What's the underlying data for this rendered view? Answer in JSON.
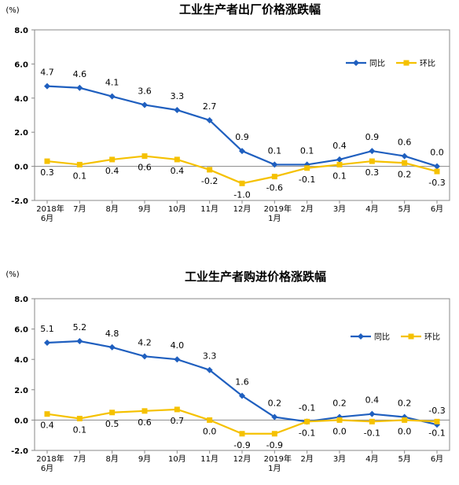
{
  "chart_data": [
    {
      "type": "line",
      "title": "工业生产者出厂价格涨跌幅",
      "unit": "(%)",
      "ylim": [
        -2.0,
        8.0
      ],
      "yticks": [
        "8.0",
        "6.0",
        "4.0",
        "2.0",
        "0.0",
        "-2.0"
      ],
      "ytick_values": [
        8,
        6,
        4,
        2,
        0,
        -2
      ],
      "categories": [
        [
          "2018年",
          "6月"
        ],
        [
          "7月"
        ],
        [
          "8月"
        ],
        [
          "9月"
        ],
        [
          "10月"
        ],
        [
          "11月"
        ],
        [
          "12月"
        ],
        [
          "2019年",
          "1月"
        ],
        [
          "2月"
        ],
        [
          "3月"
        ],
        [
          "4月"
        ],
        [
          "5月"
        ],
        [
          "6月"
        ]
      ],
      "legend_position": "top-right",
      "series": [
        {
          "name": "同比",
          "color": "#1f5fbf",
          "marker": "diamond",
          "values": [
            4.7,
            4.6,
            4.1,
            3.6,
            3.3,
            2.7,
            0.9,
            0.1,
            0.1,
            0.4,
            0.9,
            0.6,
            0.0
          ],
          "labels": [
            "4.7",
            "4.6",
            "4.1",
            "3.6",
            "3.3",
            "2.7",
            "0.9",
            "0.1",
            "0.1",
            "0.4",
            "0.9",
            "0.6",
            "0.0"
          ]
        },
        {
          "name": "环比",
          "color": "#f5c100",
          "marker": "square",
          "values": [
            0.3,
            0.1,
            0.4,
            0.6,
            0.4,
            -0.2,
            -1.0,
            -0.6,
            -0.1,
            0.1,
            0.3,
            0.2,
            -0.3
          ],
          "labels": [
            "0.3",
            "0.1",
            "0.4",
            "0.6",
            "0.4",
            "-0.2",
            "-1.0",
            "-0.6",
            "-0.1",
            "0.1",
            "0.3",
            "0.2",
            "-0.3"
          ]
        }
      ]
    },
    {
      "type": "line",
      "title": "工业生产者购进价格涨跌幅",
      "unit": "(%)",
      "ylim": [
        -2.0,
        8.0
      ],
      "yticks": [
        "8.0",
        "6.0",
        "4.0",
        "2.0",
        "0.0",
        "-2.0"
      ],
      "ytick_values": [
        8,
        6,
        4,
        2,
        0,
        -2
      ],
      "categories": [
        [
          "2018年",
          "6月"
        ],
        [
          "7月"
        ],
        [
          "8月"
        ],
        [
          "9月"
        ],
        [
          "10月"
        ],
        [
          "11月"
        ],
        [
          "12月"
        ],
        [
          "2019年",
          "1月"
        ],
        [
          "2月"
        ],
        [
          "3月"
        ],
        [
          "4月"
        ],
        [
          "5月"
        ],
        [
          "6月"
        ]
      ],
      "legend_position": "top-right",
      "series": [
        {
          "name": "同比",
          "color": "#1f5fbf",
          "marker": "diamond",
          "values": [
            5.1,
            5.2,
            4.8,
            4.2,
            4.0,
            3.3,
            1.6,
            0.2,
            -0.1,
            0.2,
            0.4,
            0.2,
            -0.3
          ],
          "labels": [
            "5.1",
            "5.2",
            "4.8",
            "4.2",
            "4.0",
            "3.3",
            "1.6",
            "0.2",
            "-0.1",
            "0.2",
            "0.4",
            "0.2",
            "-0.3"
          ]
        },
        {
          "name": "环比",
          "color": "#f5c100",
          "marker": "square",
          "values": [
            0.4,
            0.1,
            0.5,
            0.6,
            0.7,
            0.0,
            -0.9,
            -0.9,
            -0.1,
            0.0,
            -0.1,
            0.0,
            -0.1
          ],
          "labels": [
            "0.4",
            "0.1",
            "0.5",
            "0.6",
            "0.7",
            "0.0",
            "-0.9",
            "-0.9",
            "-0.1",
            "0.0",
            "-0.1",
            "0.0",
            "-0.1"
          ]
        }
      ]
    }
  ]
}
